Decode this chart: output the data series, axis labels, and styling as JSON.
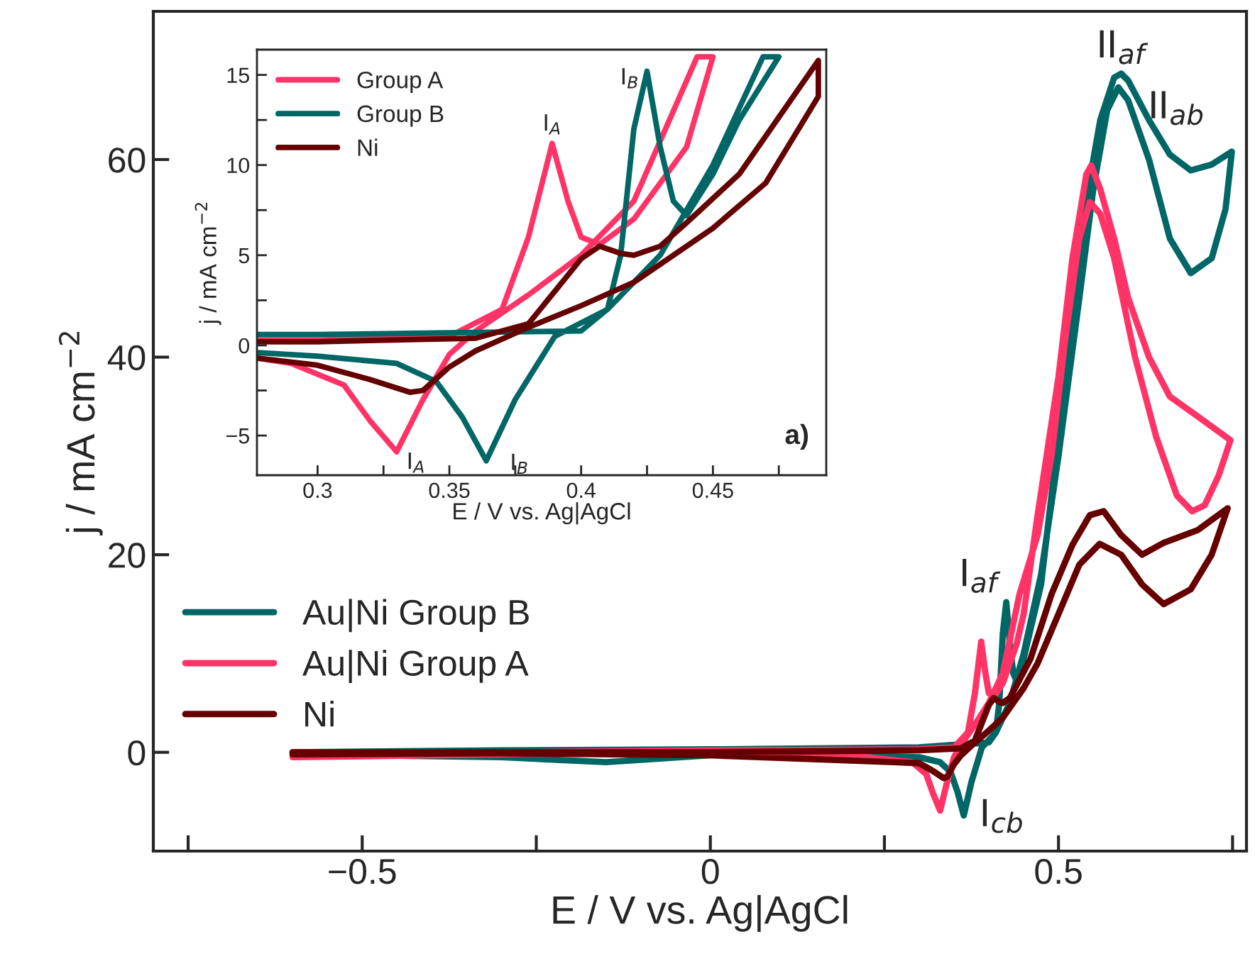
{
  "chart_data": [
    {
      "type": "line",
      "xlabel": "E / V vs. Ag|AgCl",
      "ylabel": "j / mA cm$^{−2}$",
      "xlim": [
        -0.8,
        0.77
      ],
      "ylim": [
        -10,
        75
      ],
      "xticks": [
        {
          "value": -0.75,
          "label": null
        },
        {
          "value": -0.5,
          "label": "−0.5"
        },
        {
          "value": -0.25,
          "label": null
        },
        0,
        {
          "value": 0.25,
          "label": null
        },
        0.5,
        {
          "value": 0.75,
          "label": null
        }
      ],
      "yticks": [
        0,
        20,
        40,
        60
      ],
      "grid": false,
      "legend": "left",
      "line_style": "solid",
      "marker": "none",
      "series": [
        {
          "name": "Au|Ni Group B",
          "color": "#006666",
          "x": [
            -0.6,
            -0.3,
            0,
            0.3,
            0.4,
            0.41,
            0.415,
            0.42,
            0.425,
            0.43,
            0.435,
            0.44,
            0.45,
            0.46,
            0.475,
            0.5,
            0.52,
            0.54,
            0.56,
            0.58,
            0.59,
            0.6,
            0.63,
            0.66,
            0.69,
            0.72,
            0.749,
            0.74,
            0.72,
            0.69,
            0.66,
            0.63,
            0.6,
            0.586,
            0.57,
            0.55,
            0.53,
            0.5,
            0.475,
            0.45,
            0.43,
            0.41,
            0.39,
            0.375,
            0.364,
            0.355,
            0.345,
            0.33,
            0.3,
            0.2,
            0.1,
            0,
            -0.15,
            -0.3,
            -0.6
          ],
          "values": [
            0,
            0.2,
            0.3,
            0.5,
            1.0,
            2,
            5,
            12,
            15.2,
            11,
            8,
            7.2,
            9.5,
            12.5,
            17,
            32,
            45,
            56,
            64,
            68.3,
            68.7,
            68,
            64,
            60.5,
            58.9,
            59.5,
            60.8,
            55,
            50,
            48.5,
            52,
            60,
            66,
            67.3,
            65,
            57,
            46,
            30,
            18,
            10,
            5,
            2,
            0.5,
            -3,
            -6.4,
            -4,
            -2,
            -1,
            -0.5,
            -0.3,
            -0.2,
            -0.3,
            -1.0,
            -0.5,
            -0.2
          ]
        },
        {
          "name": "Au|Ni Group A",
          "color": "#ff3366",
          "x": [
            -0.6,
            -0.3,
            0,
            0.3,
            0.35,
            0.37,
            0.38,
            0.389,
            0.395,
            0.4,
            0.407,
            0.42,
            0.44,
            0.45,
            0.47,
            0.5,
            0.52,
            0.54,
            0.547,
            0.56,
            0.58,
            0.6,
            0.63,
            0.66,
            0.7,
            0.747,
            0.73,
            0.71,
            0.692,
            0.67,
            0.64,
            0.61,
            0.58,
            0.56,
            0.545,
            0.53,
            0.51,
            0.49,
            0.47,
            0.444,
            0.42,
            0.4,
            0.38,
            0.36,
            0.35,
            0.34,
            0.33,
            0.32,
            0.31,
            0.29,
            0.2,
            0,
            -0.3,
            -0.6
          ],
          "values": [
            0,
            0,
            0.2,
            0.3,
            0.5,
            2,
            6,
            11.2,
            8,
            6,
            5.6,
            7,
            11,
            14,
            24,
            38,
            50,
            58.5,
            59.4,
            57,
            52,
            46,
            40,
            36,
            34,
            31.6,
            28,
            25,
            24.4,
            26,
            32,
            40,
            50,
            54.5,
            55.7,
            52,
            42,
            30,
            22,
            16,
            8,
            5,
            2.8,
            0.8,
            -0.5,
            -3,
            -5.9,
            -4.2,
            -2.2,
            -1.0,
            -0.3,
            0.2,
            -0.2,
            -0.5
          ]
        },
        {
          "name": "Ni",
          "color": "#660000",
          "x": [
            -0.6,
            -0.3,
            0,
            0.3,
            0.36,
            0.38,
            0.39,
            0.4,
            0.407,
            0.415,
            0.42,
            0.43,
            0.44,
            0.46,
            0.49,
            0.52,
            0.545,
            0.565,
            0.59,
            0.62,
            0.651,
            0.7,
            0.743,
            0.72,
            0.69,
            0.651,
            0.62,
            0.59,
            0.559,
            0.53,
            0.5,
            0.47,
            0.45,
            0.42,
            0.4,
            0.38,
            0.36,
            0.35,
            0.34,
            0.335,
            0.32,
            0.3,
            0,
            -0.3,
            -0.6
          ],
          "values": [
            0,
            0,
            0,
            0.2,
            0.4,
            1.2,
            3,
            4.8,
            5.5,
            5.1,
            5.0,
            5.5,
            6.8,
            9.5,
            16,
            21,
            24,
            24.4,
            22,
            20,
            21.2,
            22.5,
            24.7,
            20,
            16.5,
            15,
            17,
            20,
            21.1,
            19,
            14,
            9,
            6.5,
            3.5,
            2.2,
            1,
            -0.3,
            -1.2,
            -2.5,
            -2.6,
            -1.9,
            -1.1,
            -0.3,
            -0.1,
            -0.2
          ]
        }
      ],
      "annotations": [
        {
          "text": "I$_{af}$",
          "x": 0.425,
          "y": 15.2
        },
        {
          "text": "II$_{af}$",
          "x": 0.59,
          "y": 68.7
        },
        {
          "text": "II$_{ab}$",
          "x": 0.6,
          "y": 66
        },
        {
          "text": "I$_{cb}$",
          "x": 0.375,
          "y": -3
        }
      ]
    },
    {
      "type": "line",
      "xlabel": "E / V vs. Ag|AgCl",
      "ylabel": "j / mA cm$^{−2}$",
      "xlim": [
        0.277,
        0.493
      ],
      "ylim": [
        -7.2,
        16.4
      ],
      "xticks": [
        0.3,
        {
          "value": 0.325,
          "label": null
        },
        0.35,
        {
          "value": 0.375,
          "label": null
        },
        0.4,
        {
          "value": 0.425,
          "label": null
        },
        0.45,
        {
          "value": 0.475,
          "label": null
        }
      ],
      "yticks": [
        {
          "value": -5,
          "label": "−5"
        },
        {
          "value": -2.5,
          "label": null
        },
        0,
        {
          "value": 2.5,
          "label": null
        },
        5,
        {
          "value": 7.5,
          "label": null
        },
        10,
        {
          "value": 12.5,
          "label": null
        },
        15
      ],
      "grid": false,
      "legend": "top left",
      "line_style": "solid",
      "marker": "none",
      "series": [
        {
          "name": "Group A",
          "color": "#ff3366",
          "x": [
            0.277,
            0.3,
            0.35,
            0.37,
            0.38,
            0.389,
            0.395,
            0.4,
            0.407,
            0.42,
            0.44,
            0.45,
            0.444,
            0.42,
            0.4,
            0.38,
            0.36,
            0.35,
            0.34,
            0.33,
            0.32,
            0.31,
            0.29,
            0.277
          ],
          "values": [
            0.3,
            0.3,
            0.5,
            2,
            6,
            11.2,
            8,
            6,
            5.6,
            7,
            11,
            16,
            16,
            8,
            5,
            2.8,
            0.8,
            -0.5,
            -3,
            -5.9,
            -4.2,
            -2.2,
            -1.0,
            -0.7
          ]
        },
        {
          "name": "Group B",
          "color": "#006666",
          "x": [
            0.277,
            0.3,
            0.4,
            0.41,
            0.415,
            0.42,
            0.425,
            0.43,
            0.435,
            0.44,
            0.45,
            0.46,
            0.475,
            0.469,
            0.45,
            0.43,
            0.41,
            0.39,
            0.375,
            0.364,
            0.355,
            0.345,
            0.33,
            0.3,
            0.277
          ],
          "values": [
            0.6,
            0.6,
            0.8,
            2,
            5,
            12,
            15.2,
            11,
            8,
            7.2,
            9.5,
            12.5,
            16,
            16,
            10,
            5,
            2,
            0.5,
            -3,
            -6.4,
            -4,
            -2,
            -1,
            -0.6,
            -0.4
          ]
        },
        {
          "name": "Ni",
          "color": "#640202",
          "x": [
            0.277,
            0.3,
            0.36,
            0.38,
            0.39,
            0.4,
            0.407,
            0.415,
            0.42,
            0.43,
            0.44,
            0.46,
            0.49,
            0.49,
            0.47,
            0.45,
            0.42,
            0.4,
            0.38,
            0.36,
            0.35,
            0.34,
            0.335,
            0.32,
            0.3,
            0.277
          ],
          "values": [
            0.2,
            0.2,
            0.4,
            1.2,
            3,
            4.8,
            5.5,
            5.1,
            5.0,
            5.5,
            6.8,
            9.5,
            15.8,
            13.8,
            9,
            6.5,
            3.5,
            2.2,
            1,
            -0.3,
            -1.2,
            -2.5,
            -2.6,
            -1.9,
            -1.1,
            -0.7
          ]
        }
      ],
      "annotations": [
        {
          "text": "I$_{A}$",
          "x": 0.389,
          "y": 11.2
        },
        {
          "text": "I$_{B}$",
          "x": 0.425,
          "y": 15.2
        },
        {
          "text": "I$_{A}$",
          "x": 0.33,
          "y": -5.9
        },
        {
          "text": "I$_{B}$",
          "x": 0.364,
          "y": -6.4
        },
        "a)"
      ]
    }
  ]
}
